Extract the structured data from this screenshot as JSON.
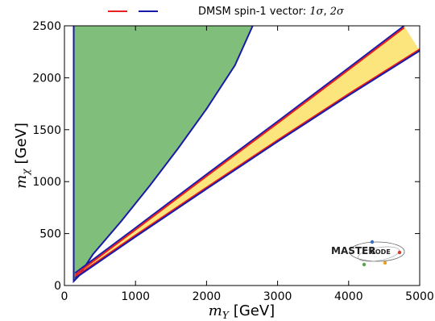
{
  "chart_data": {
    "type": "area",
    "legend": {
      "placement": "top",
      "text": "DMSM spin-1 vector: ",
      "sigma1": "1σ",
      "sigma2": "2σ",
      "colors": [
        "#e8201f",
        "#1a1aa8"
      ]
    },
    "xlabel_symbol": "m",
    "xlabel_sub": "Y",
    "xlabel_unit": "[GeV]",
    "ylabel_symbol": "m",
    "ylabel_sub": "χ",
    "ylabel_unit": "[GeV]",
    "xlim": [
      0,
      5000
    ],
    "ylim": [
      0,
      2500
    ],
    "xticks": [
      0,
      1000,
      2000,
      3000,
      4000,
      5000
    ],
    "yticks": [
      0,
      500,
      1000,
      1500,
      2000,
      2500
    ],
    "grid": false,
    "colors": {
      "green_fill": "#7fbf7b",
      "yellow_fill": "#fce57c",
      "red_line": "#e8201f",
      "blue_line": "#1a1aa8"
    },
    "series": [
      {
        "name": "green region",
        "role": "allowed region (upper)",
        "polygon": [
          [
            130,
            2500
          ],
          [
            130,
            40
          ],
          [
            200,
            90
          ],
          [
            400,
            300
          ],
          [
            800,
            620
          ],
          [
            1200,
            960
          ],
          [
            1600,
            1320
          ],
          [
            2000,
            1700
          ],
          [
            2400,
            2120
          ],
          [
            2650,
            2500
          ]
        ]
      },
      {
        "name": "yellow band",
        "role": "allowed region (resonance band)",
        "upper": [
          [
            150,
            120
          ],
          [
            1000,
            555
          ],
          [
            2000,
            1070
          ],
          [
            3000,
            1580
          ],
          [
            4000,
            2095
          ],
          [
            4780,
            2500
          ]
        ],
        "lower": [
          [
            150,
            70
          ],
          [
            1000,
            470
          ],
          [
            2000,
            930
          ],
          [
            3000,
            1385
          ],
          [
            4000,
            1830
          ],
          [
            5000,
            2260
          ]
        ]
      }
    ],
    "annotations": {
      "logo_main": "MASTER",
      "logo_small": "CODE"
    }
  }
}
